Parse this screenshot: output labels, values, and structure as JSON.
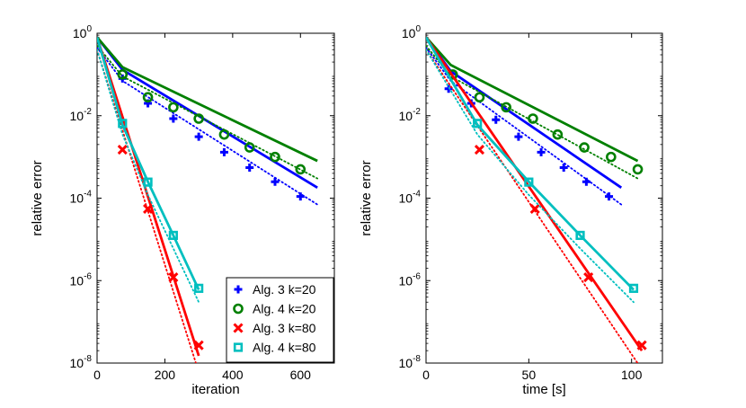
{
  "chart_data": [
    {
      "type": "line",
      "title": "",
      "xlabel": "iteration",
      "ylabel": "relative error",
      "xlim": [
        0,
        700
      ],
      "ylim": [
        1e-08,
        1
      ],
      "yscale": "log",
      "xticks": [
        {
          "value": 0,
          "label": "0"
        },
        {
          "value": 200,
          "label": "200"
        },
        {
          "value": 400,
          "label": "400"
        },
        {
          "value": 600,
          "label": "600"
        }
      ],
      "yticks": [
        {
          "value": 1,
          "mantissa": "10",
          "exponent": "0"
        },
        {
          "value": 0.01,
          "mantissa": "10",
          "exponent": "-2"
        },
        {
          "value": 0.0001,
          "mantissa": "10",
          "exponent": "-4"
        },
        {
          "value": 1e-06,
          "mantissa": "10",
          "exponent": "-6"
        },
        {
          "value": 1e-08,
          "mantissa": "10",
          "exponent": "-8"
        }
      ],
      "legend_position": "bottom-right",
      "series": [
        {
          "name": "Alg. 3 k=20",
          "color": "#0000ff",
          "marker": "plus",
          "line": {
            "x": [
              0,
              75,
              650
            ],
            "y": [
              0.8,
              0.13,
              0.00018
            ]
          },
          "dotted": {
            "x": [
              0,
              75,
              650
            ],
            "y": [
              0.45,
              0.07,
              7e-05
            ]
          },
          "points": {
            "x": [
              75,
              150,
              225,
              300,
              375,
              450,
              525,
              600
            ],
            "y": [
              0.08,
              0.02,
              0.0085,
              0.0031,
              0.0013,
              0.00055,
              0.00025,
              0.00011
            ]
          }
        },
        {
          "name": "Alg. 4 k=20",
          "color": "#008000",
          "marker": "circle",
          "line": {
            "x": [
              0,
              75,
              650
            ],
            "y": [
              0.8,
              0.15,
              0.0008
            ]
          },
          "dotted": {
            "x": [
              0,
              75,
              650
            ],
            "y": [
              0.5,
              0.09,
              0.0003
            ]
          },
          "points": {
            "x": [
              75,
              150,
              225,
              300,
              375,
              450,
              525,
              600
            ],
            "y": [
              0.1,
              0.028,
              0.016,
              0.0085,
              0.0035,
              0.0017,
              0.001,
              0.0005
            ]
          }
        },
        {
          "name": "Alg. 3 k=80",
          "color": "#ff0000",
          "marker": "x",
          "line": {
            "x": [
              0,
              300
            ],
            "y": [
              0.8,
              1.5e-08
            ]
          },
          "dotted": {
            "x": [
              0,
              300
            ],
            "y": [
              0.4,
              6e-09
            ]
          },
          "points": {
            "x": [
              75,
              150,
              225,
              300
            ],
            "y": [
              0.0015,
              5.5e-05,
              1.2e-06,
              2.7e-08
            ]
          }
        },
        {
          "name": "Alg. 4 k=80",
          "color": "#00bfbf",
          "marker": "square",
          "line": {
            "x": [
              0,
              75,
              150,
              225,
              300
            ],
            "y": [
              0.8,
              0.006,
              0.00025,
              1.25e-05,
              6e-07
            ]
          },
          "dotted": {
            "x": [
              0,
              75,
              150,
              225,
              300
            ],
            "y": [
              0.4,
              0.0035,
              0.00012,
              6e-06,
              3e-07
            ]
          },
          "points": {
            "x": [
              75,
              150,
              225,
              300
            ],
            "y": [
              0.0065,
              0.000245,
              1.25e-05,
              6.5e-07
            ]
          }
        }
      ]
    },
    {
      "type": "line",
      "title": "",
      "xlabel": "time [s]",
      "ylabel": "relative error",
      "xlim": [
        0,
        115
      ],
      "ylim": [
        1e-08,
        1
      ],
      "yscale": "log",
      "xticks": [
        {
          "value": 0,
          "label": "0"
        },
        {
          "value": 50,
          "label": "50"
        },
        {
          "value": 100,
          "label": "100"
        }
      ],
      "yticks": [
        {
          "value": 1,
          "mantissa": "10",
          "exponent": "0"
        },
        {
          "value": 0.01,
          "mantissa": "10",
          "exponent": "-2"
        },
        {
          "value": 0.0001,
          "mantissa": "10",
          "exponent": "-4"
        },
        {
          "value": 1e-06,
          "mantissa": "10",
          "exponent": "-6"
        },
        {
          "value": 1e-08,
          "mantissa": "10",
          "exponent": "-8"
        }
      ],
      "series": [
        {
          "name": "Alg. 3 k=20",
          "color": "#0000ff",
          "marker": "plus",
          "line": {
            "x": [
              0,
              12,
              95
            ],
            "y": [
              0.8,
              0.12,
              0.00018
            ]
          },
          "dotted": {
            "x": [
              0,
              12,
              95
            ],
            "y": [
              0.45,
              0.07,
              7e-05
            ]
          },
          "points": {
            "x": [
              11,
              22,
              34,
              45,
              56,
              67,
              78,
              89
            ],
            "y": [
              0.045,
              0.02,
              0.008,
              0.0031,
              0.0013,
              0.00055,
              0.00025,
              0.00011
            ]
          }
        },
        {
          "name": "Alg. 4 k=20",
          "color": "#008000",
          "marker": "circle",
          "line": {
            "x": [
              0,
              12,
              103
            ],
            "y": [
              0.8,
              0.17,
              0.0008
            ]
          },
          "dotted": {
            "x": [
              0,
              12,
              103
            ],
            "y": [
              0.5,
              0.09,
              0.0003
            ]
          },
          "points": {
            "x": [
              13,
              26,
              39,
              52,
              64,
              77,
              90,
              103
            ],
            "y": [
              0.1,
              0.028,
              0.016,
              0.0085,
              0.0035,
              0.0017,
              0.001,
              0.0005
            ]
          }
        },
        {
          "name": "Alg. 3 k=80",
          "color": "#ff0000",
          "marker": "x",
          "line": {
            "x": [
              0,
              105
            ],
            "y": [
              0.8,
              2e-08
            ]
          },
          "dotted": {
            "x": [
              0,
              105
            ],
            "y": [
              0.4,
              7e-09
            ]
          },
          "points": {
            "x": [
              26,
              53,
              79,
              105
            ],
            "y": [
              0.0015,
              5.5e-05,
              1.2e-06,
              2.7e-08
            ]
          }
        },
        {
          "name": "Alg. 4 k=80",
          "color": "#00bfbf",
          "marker": "square",
          "line": {
            "x": [
              0,
              25,
              50,
              75,
              101
            ],
            "y": [
              0.8,
              0.006,
              0.00025,
              1.25e-05,
              6e-07
            ]
          },
          "dotted": {
            "x": [
              0,
              25,
              50,
              75,
              101
            ],
            "y": [
              0.4,
              0.0035,
              0.00012,
              6e-06,
              3e-07
            ]
          },
          "points": {
            "x": [
              25,
              50,
              75,
              101
            ],
            "y": [
              0.0065,
              0.000245,
              1.25e-05,
              6.5e-07
            ]
          }
        }
      ]
    }
  ]
}
